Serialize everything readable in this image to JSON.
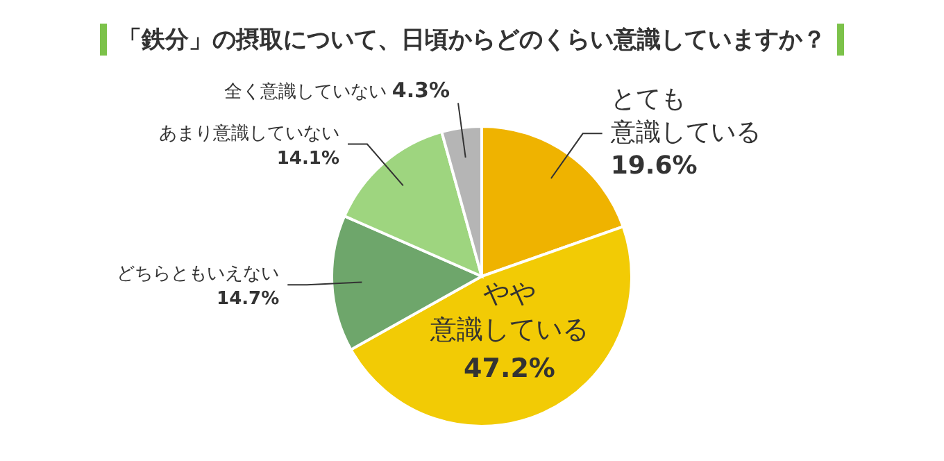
{
  "chart_data": {
    "type": "pie",
    "title": "「鉄分」の摂取について、日頃からどのくらい意識していますか？",
    "categories": [
      "とても意識している",
      "やや意識している",
      "どちらともいえない",
      "あまり意識していない",
      "全く意識していない"
    ],
    "values": [
      19.6,
      47.2,
      14.7,
      14.1,
      4.3
    ],
    "value_labels": [
      "19.6%",
      "47.2%",
      "14.7%",
      "14.1%",
      "4.3%"
    ],
    "colors": [
      "#efb300",
      "#f2cb05",
      "#6ea66b",
      "#9ed57f",
      "#b5b5b5"
    ],
    "legend": false
  }
}
